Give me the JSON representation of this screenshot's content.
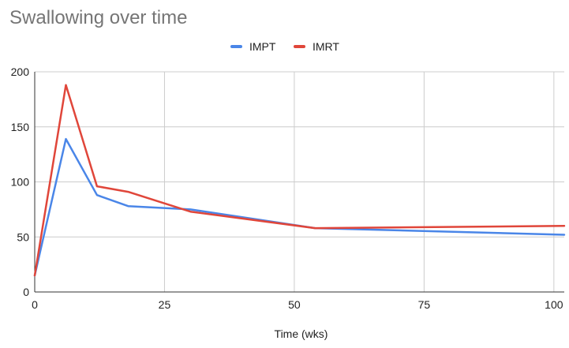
{
  "chart_data": {
    "type": "line",
    "title": "Swallowing over time",
    "xlabel": "Time (wks)",
    "ylabel": "",
    "xlim": [
      0,
      102
    ],
    "ylim": [
      0,
      200
    ],
    "xticks": [
      0,
      25,
      50,
      75,
      100
    ],
    "yticks": [
      0,
      50,
      100,
      150,
      200
    ],
    "grid": true,
    "legend_position": "top",
    "series": [
      {
        "name": "IMPT",
        "color": "#4a86e8",
        "x": [
          0,
          6,
          12,
          18,
          30,
          54,
          102
        ],
        "y": [
          15,
          139,
          88,
          78,
          75,
          58,
          52
        ]
      },
      {
        "name": "IMRT",
        "color": "#e0463a",
        "x": [
          0,
          6,
          12,
          18,
          30,
          54,
          102
        ],
        "y": [
          15,
          188,
          96,
          91,
          73,
          58,
          60
        ]
      }
    ]
  }
}
